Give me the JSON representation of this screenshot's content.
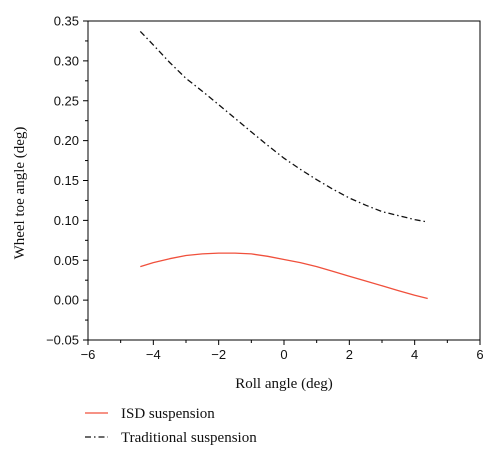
{
  "chart_data": {
    "type": "line",
    "title": "",
    "xlabel": "Roll angle (deg)",
    "ylabel": "Wheel toe angle (deg)",
    "xlim": [
      -6,
      6
    ],
    "ylim": [
      -0.05,
      0.35
    ],
    "xticks": [
      -6,
      -4,
      -2,
      0,
      2,
      4,
      6
    ],
    "yticks": [
      -0.05,
      0.0,
      0.05,
      0.1,
      0.15,
      0.2,
      0.25,
      0.3,
      0.35
    ],
    "xtick_labels": [
      "−6",
      "−4",
      "−2",
      "0",
      "2",
      "4",
      "6"
    ],
    "ytick_labels": [
      "−0.05",
      "0.00",
      "0.05",
      "0.10",
      "0.15",
      "0.20",
      "0.25",
      "0.30",
      "0.35"
    ],
    "grid": false,
    "legend_position": "bottom, below plot",
    "series": [
      {
        "name": "ISD suspension",
        "color": "#f0503c",
        "style": "solid",
        "x": [
          -4.4,
          -4.0,
          -3.5,
          -3.0,
          -2.5,
          -2.0,
          -1.5,
          -1.0,
          -0.5,
          0.0,
          0.5,
          1.0,
          1.5,
          2.0,
          2.5,
          3.0,
          3.5,
          4.0,
          4.4
        ],
        "y": [
          0.042,
          0.047,
          0.052,
          0.056,
          0.058,
          0.059,
          0.059,
          0.058,
          0.055,
          0.051,
          0.047,
          0.042,
          0.036,
          0.03,
          0.024,
          0.018,
          0.012,
          0.006,
          0.002
        ]
      },
      {
        "name": "Traditional suspension",
        "color": "#111111",
        "style": "dash-dot",
        "x": [
          -4.4,
          -4.0,
          -3.5,
          -3.0,
          -2.5,
          -2.0,
          -1.5,
          -1.0,
          -0.5,
          0.0,
          0.5,
          1.0,
          1.5,
          2.0,
          2.5,
          3.0,
          3.5,
          4.0,
          4.4
        ],
        "y": [
          0.337,
          0.32,
          0.298,
          0.278,
          0.262,
          0.245,
          0.228,
          0.211,
          0.194,
          0.178,
          0.164,
          0.151,
          0.139,
          0.128,
          0.119,
          0.111,
          0.106,
          0.101,
          0.098
        ]
      }
    ]
  }
}
